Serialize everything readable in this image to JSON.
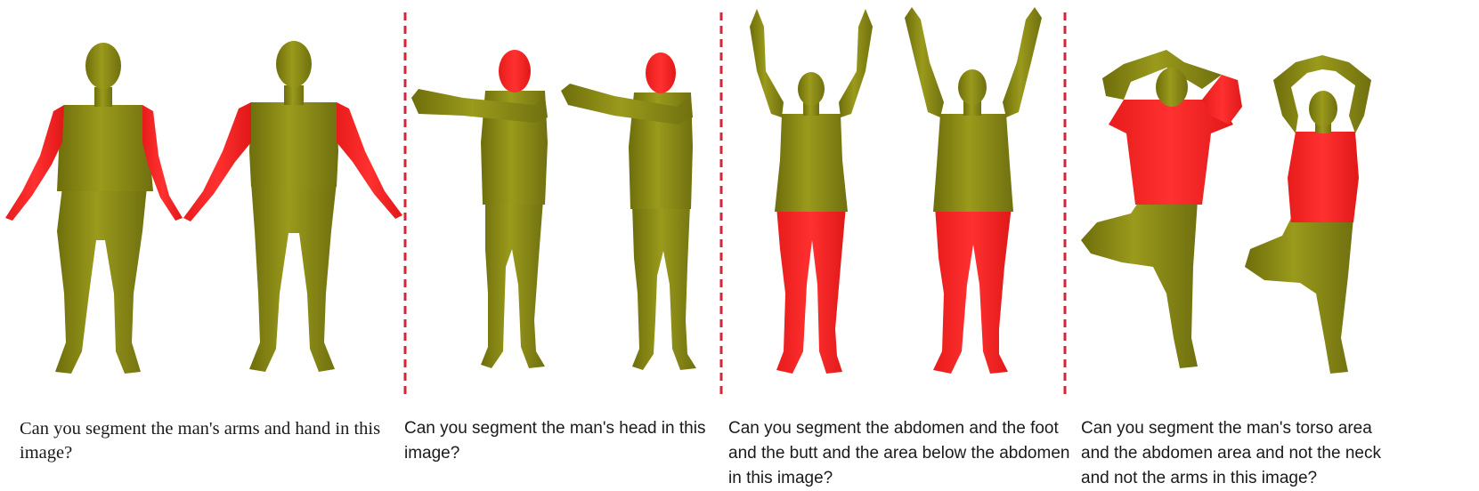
{
  "colors": {
    "body": "#8a8a12",
    "highlight": "#ff2a2a",
    "divider": "#d0283a",
    "text": "#1a1a1a"
  },
  "panels": [
    {
      "caption": "Can you segment the man's arms and hand in this image?",
      "segmented_part": "arms and hands"
    },
    {
      "caption": "Can you segment the man's head in this image?",
      "segmented_part": "head"
    },
    {
      "caption": "Can you segment the abdomen and the foot and the butt and the area below the abdomen in this image?",
      "segmented_part": "lower body"
    },
    {
      "caption": "Can you segment the man's torso area and the abdomen area and not the neck and not the arms in this image?",
      "segmented_part": "torso and abdomen"
    }
  ]
}
